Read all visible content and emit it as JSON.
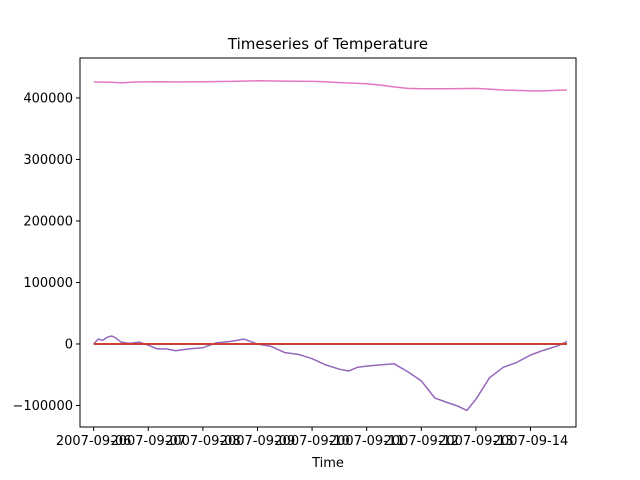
{
  "chart_data": {
    "type": "line",
    "title": "Timeseries of Temperature",
    "xlabel": "Time",
    "ylabel": "",
    "xlim": [
      "2007-09-05T18:00",
      "2007-09-14T20:00"
    ],
    "ylim": [
      -135000,
      465000
    ],
    "x_ticks": [
      {
        "label": "2007-09-06",
        "t": "2007-09-06T00:00"
      },
      {
        "label": "2007-09-07",
        "t": "2007-09-07T00:00"
      },
      {
        "label": "2007-09-08",
        "t": "2007-09-08T00:00"
      },
      {
        "label": "2007-09-09",
        "t": "2007-09-09T00:00"
      },
      {
        "label": "2007-09-10",
        "t": "2007-09-10T00:00"
      },
      {
        "label": "2007-09-11",
        "t": "2007-09-11T00:00"
      },
      {
        "label": "2007-09-12",
        "t": "2007-09-12T00:00"
      },
      {
        "label": "2007-09-13",
        "t": "2007-09-13T00:00"
      },
      {
        "label": "2007-09-14",
        "t": "2007-09-14T00:00"
      }
    ],
    "y_ticks": [
      {
        "label": "−100000",
        "v": -100000
      },
      {
        "label": "0",
        "v": 0
      },
      {
        "label": "100000",
        "v": 100000
      },
      {
        "label": "200000",
        "v": 200000
      },
      {
        "label": "300000",
        "v": 300000
      },
      {
        "label": "400000",
        "v": 400000
      }
    ],
    "grid": false,
    "legend": "none",
    "series": [
      {
        "color": "#e377c2",
        "points": [
          [
            "2007-09-06T00:00",
            426000
          ],
          [
            "2007-09-06T08:00",
            425500
          ],
          [
            "2007-09-06T12:00",
            424500
          ],
          [
            "2007-09-06T18:00",
            426000
          ],
          [
            "2007-09-07T06:00",
            426500
          ],
          [
            "2007-09-07T12:00",
            426000
          ],
          [
            "2007-09-08T00:00",
            426500
          ],
          [
            "2007-09-08T12:00",
            427000
          ],
          [
            "2007-09-09T00:00",
            428000
          ],
          [
            "2007-09-09T12:00",
            427500
          ],
          [
            "2007-09-10T00:00",
            427000
          ],
          [
            "2007-09-10T06:00",
            426500
          ],
          [
            "2007-09-10T12:00",
            425000
          ],
          [
            "2007-09-11T00:00",
            423000
          ],
          [
            "2007-09-11T06:00",
            421000
          ],
          [
            "2007-09-11T12:00",
            418000
          ],
          [
            "2007-09-11T18:00",
            415500
          ],
          [
            "2007-09-12T00:00",
            415000
          ],
          [
            "2007-09-12T12:00",
            415000
          ],
          [
            "2007-09-13T00:00",
            415500
          ],
          [
            "2007-09-13T06:00",
            414500
          ],
          [
            "2007-09-13T12:00",
            413000
          ],
          [
            "2007-09-14T00:00",
            411500
          ],
          [
            "2007-09-14T06:00",
            411500
          ],
          [
            "2007-09-14T12:00",
            412500
          ],
          [
            "2007-09-14T16:00",
            413000
          ]
        ]
      },
      {
        "color": "#9467bd",
        "points": [
          [
            "2007-09-06T00:00",
            0
          ],
          [
            "2007-09-06T02:00",
            8000
          ],
          [
            "2007-09-06T04:00",
            6000
          ],
          [
            "2007-09-06T06:00",
            11000
          ],
          [
            "2007-09-06T08:00",
            13000
          ],
          [
            "2007-09-06T10:00",
            9000
          ],
          [
            "2007-09-06T12:00",
            3000
          ],
          [
            "2007-09-06T16:00",
            1000
          ],
          [
            "2007-09-06T20:00",
            3000
          ],
          [
            "2007-09-07T00:00",
            -2000
          ],
          [
            "2007-09-07T04:00",
            -8000
          ],
          [
            "2007-09-07T08:00",
            -8000
          ],
          [
            "2007-09-07T12:00",
            -11000
          ],
          [
            "2007-09-07T18:00",
            -8000
          ],
          [
            "2007-09-08T00:00",
            -6000
          ],
          [
            "2007-09-08T06:00",
            2000
          ],
          [
            "2007-09-08T12:00",
            4000
          ],
          [
            "2007-09-08T18:00",
            8000
          ],
          [
            "2007-09-09T00:00",
            0
          ],
          [
            "2007-09-09T06:00",
            -4000
          ],
          [
            "2007-09-09T12:00",
            -14000
          ],
          [
            "2007-09-09T18:00",
            -17000
          ],
          [
            "2007-09-10T00:00",
            -24000
          ],
          [
            "2007-09-10T06:00",
            -34000
          ],
          [
            "2007-09-10T12:00",
            -41000
          ],
          [
            "2007-09-10T16:00",
            -44000
          ],
          [
            "2007-09-10T20:00",
            -38000
          ],
          [
            "2007-09-11T00:00",
            -36000
          ],
          [
            "2007-09-11T06:00",
            -34000
          ],
          [
            "2007-09-11T12:00",
            -32000
          ],
          [
            "2007-09-11T18:00",
            -45000
          ],
          [
            "2007-09-12T00:00",
            -60000
          ],
          [
            "2007-09-12T06:00",
            -88000
          ],
          [
            "2007-09-12T12:00",
            -96000
          ],
          [
            "2007-09-12T16:00",
            -101000
          ],
          [
            "2007-09-12T20:00",
            -108000
          ],
          [
            "2007-09-13T00:00",
            -90000
          ],
          [
            "2007-09-13T06:00",
            -55000
          ],
          [
            "2007-09-13T12:00",
            -38000
          ],
          [
            "2007-09-13T18:00",
            -30000
          ],
          [
            "2007-09-14T00:00",
            -18000
          ],
          [
            "2007-09-14T06:00",
            -10000
          ],
          [
            "2007-09-14T12:00",
            -3000
          ],
          [
            "2007-09-14T16:00",
            4000
          ]
        ]
      },
      {
        "color": "#2ca02c",
        "points": [
          [
            "2007-09-06T00:00",
            0
          ],
          [
            "2007-09-14T16:00",
            0
          ]
        ]
      },
      {
        "color": "#1f77b4",
        "points": [
          [
            "2007-09-06T00:00",
            0
          ],
          [
            "2007-09-14T16:00",
            0
          ]
        ]
      },
      {
        "color": "#ff7f0e",
        "points": [
          [
            "2007-09-06T00:00",
            200
          ],
          [
            "2007-09-14T16:00",
            200
          ]
        ]
      },
      {
        "color": "#d62728",
        "points": [
          [
            "2007-09-06T00:00",
            0
          ],
          [
            "2007-09-14T16:00",
            0
          ]
        ]
      }
    ]
  }
}
